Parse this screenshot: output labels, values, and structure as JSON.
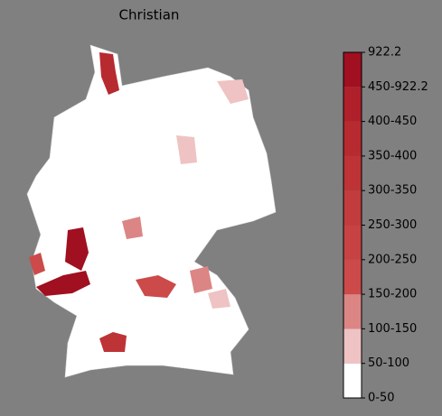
{
  "title": "Christian",
  "colorbar": {
    "labels": [
      "0-50",
      "50-100",
      "100-150",
      "150-200",
      "200-250",
      "250-300",
      "300-350",
      "350-400",
      "400-450",
      "450-922.2",
      "922.2"
    ],
    "colors": [
      "#ffffff",
      "#efc3c3",
      "#dc8585",
      "#cc4a4a",
      "#c74343",
      "#c23b3d",
      "#bd3336",
      "#b72a30",
      "#b0202a",
      "#a01020"
    ]
  }
}
